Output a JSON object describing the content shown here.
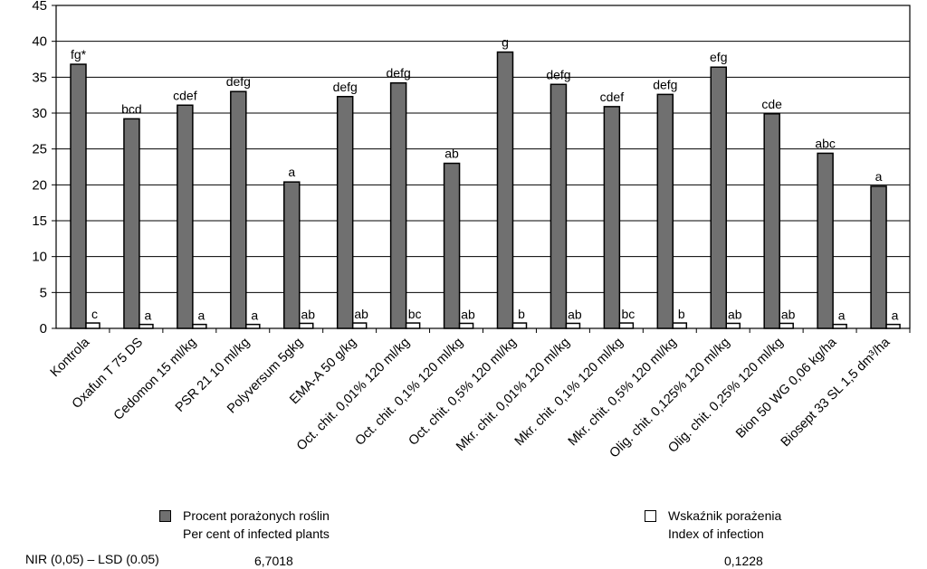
{
  "chart_data": {
    "type": "bar",
    "categories": [
      "Kontrola",
      "Oxafun T 75 DS",
      "Cedomon 15 ml/kg",
      "PSR 21 10 ml/kg",
      "Polyversum 5gkg",
      "EMA-A 50 g/kg",
      "Oct. chit. 0,01% 120 ml/kg",
      "Oct. chit. 0,1% 120 ml/kg",
      "Oct. chit. 0,5% 120 ml/kg",
      "Mkr. chit. 0,01% 120 ml/kg",
      "Mkr. chit. 0,1% 120 ml/kg",
      "Mkr. chit. 0,5% 120 ml/kg",
      "Olig. chit. 0,125% 120 ml/kg",
      "Olig. chit. 0,25% 120 ml/kg",
      "Bion 50 WG 0,06 kg/ha",
      "Biosept 33 SL 1,5 dm³/ha"
    ],
    "series": [
      {
        "name": "Procent porażonych roślin / Per cent of infected plants",
        "color": "#707070",
        "values": [
          36.8,
          29.2,
          31.1,
          33.0,
          20.4,
          32.3,
          34.2,
          23.0,
          38.5,
          34.0,
          30.9,
          32.6,
          36.4,
          29.9,
          24.4,
          19.8
        ],
        "labels": [
          "fg*",
          "bcd",
          "cdef",
          "defg",
          "a",
          "defg",
          "defg",
          "ab",
          "g",
          "defg",
          "cdef",
          "defg",
          "efg",
          "cde",
          "abc",
          "a"
        ]
      },
      {
        "name": "Wskaźnik porażenia / Index of infection",
        "color": "#ffffff",
        "values": [
          0.75,
          0.55,
          0.55,
          0.55,
          0.7,
          0.75,
          0.75,
          0.7,
          0.75,
          0.7,
          0.75,
          0.75,
          0.7,
          0.7,
          0.55,
          0.55
        ],
        "labels": [
          "c",
          "a",
          "a",
          "a",
          "ab",
          "ab",
          "bc",
          "ab",
          "b",
          "ab",
          "bc",
          "b",
          "ab",
          "ab",
          "a",
          "a"
        ]
      }
    ],
    "ylim": [
      0,
      45
    ],
    "yticks": [
      0,
      5,
      10,
      15,
      20,
      25,
      30,
      35,
      40,
      45
    ],
    "grid": true,
    "legend": [
      {
        "line1": "Procent porażonych roślin",
        "line2": "Per cent of infected plants",
        "fill": "#707070"
      },
      {
        "line1": "Wskaźnik porażenia",
        "line2": "Index of infection",
        "fill": "#ffffff"
      }
    ],
    "lsd": {
      "label": "NIR (0,05) – LSD (0.05)",
      "value1": "6,7018",
      "value2": "0,1228"
    }
  }
}
